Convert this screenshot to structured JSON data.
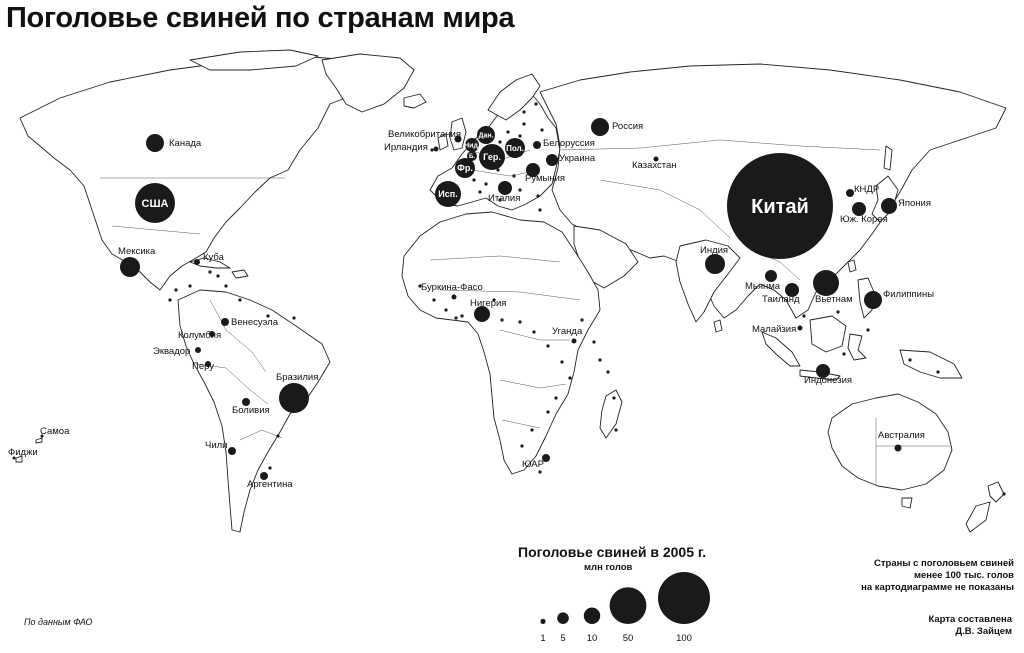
{
  "title": "Поголовье свиней по странам мира",
  "legend": {
    "title": "Поголовье свиней в 2005 г.",
    "subtitle": "млн голов",
    "sizes": [
      {
        "label": "1",
        "value": 1
      },
      {
        "label": "5",
        "value": 5
      },
      {
        "label": "10",
        "value": 10
      },
      {
        "label": "50",
        "value": 50
      },
      {
        "label": "100",
        "value": 100
      }
    ]
  },
  "notes": {
    "threshold_line1": "Страны с поголовьем свиней",
    "threshold_line2": "менее 100 тыс. голов",
    "threshold_line3": "на картодиаграмме не показаны",
    "author_line1": "Карта составлена",
    "author_line2": "Д.В. Зайцем",
    "source": "По данным ФАО"
  },
  "countries": [
    {
      "name": "Китай",
      "label_inside": true
    },
    {
      "name": "США",
      "label_inside": true
    },
    {
      "name": "Исп.",
      "label_inside": true
    },
    {
      "name": "Фр.",
      "label_inside": true
    },
    {
      "name": "Гер.",
      "label_inside": true
    },
    {
      "name": "Пол.",
      "label_inside": true
    },
    {
      "name": "Дан.",
      "label_inside": true
    },
    {
      "name": "Нид.",
      "label_inside": true
    },
    {
      "name": "Б.",
      "label_inside": true
    },
    {
      "name": "Канада"
    },
    {
      "name": "Мексика"
    },
    {
      "name": "Куба"
    },
    {
      "name": "Венесуэла"
    },
    {
      "name": "Колумбия"
    },
    {
      "name": "Эквадор"
    },
    {
      "name": "Перу"
    },
    {
      "name": "Бразилия"
    },
    {
      "name": "Боливия"
    },
    {
      "name": "Чили"
    },
    {
      "name": "Аргентина"
    },
    {
      "name": "Самоа"
    },
    {
      "name": "Фиджи"
    },
    {
      "name": "Великобритания"
    },
    {
      "name": "Ирландия"
    },
    {
      "name": "Белоруссия"
    },
    {
      "name": "Украина"
    },
    {
      "name": "Румыния"
    },
    {
      "name": "Италия"
    },
    {
      "name": "Россия"
    },
    {
      "name": "Казахстан"
    },
    {
      "name": "Буркина-Фасо"
    },
    {
      "name": "Нигерия"
    },
    {
      "name": "Уганда"
    },
    {
      "name": "ЮАР"
    },
    {
      "name": "Индия"
    },
    {
      "name": "КНДР"
    },
    {
      "name": "Япония"
    },
    {
      "name": "Юж. Корея"
    },
    {
      "name": "Мьянма"
    },
    {
      "name": "Таиланд"
    },
    {
      "name": "Вьетнам"
    },
    {
      "name": "Филиппины"
    },
    {
      "name": "Малайзия"
    },
    {
      "name": "Индонезия"
    },
    {
      "name": "Австралия"
    }
  ]
}
